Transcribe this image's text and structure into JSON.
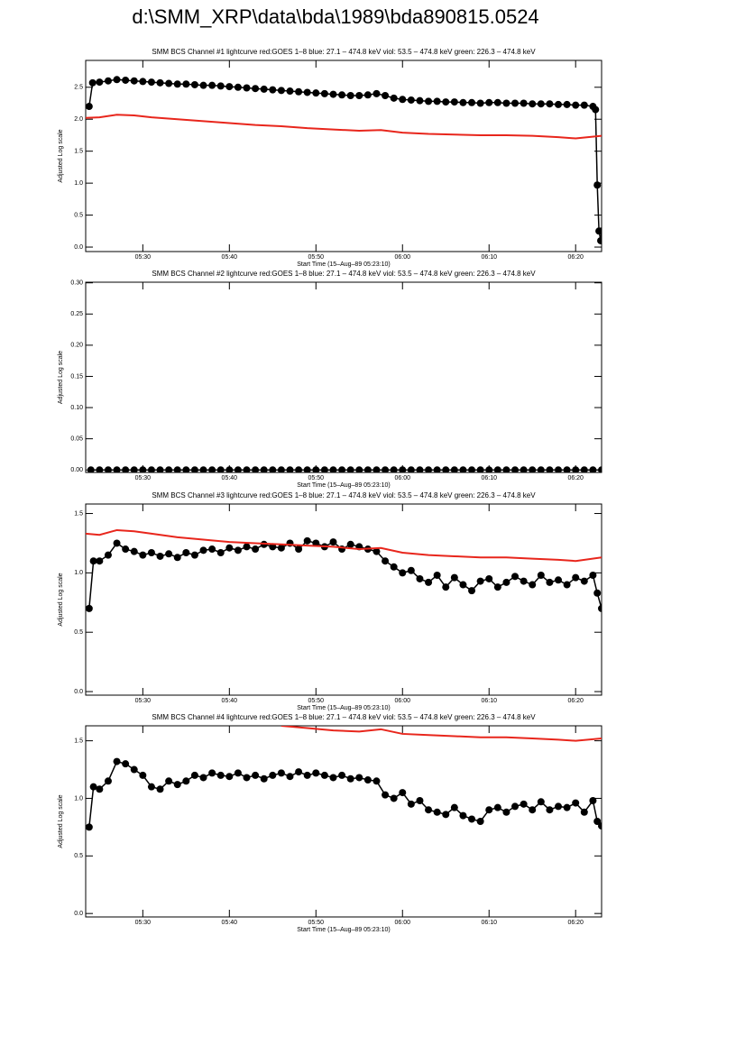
{
  "title": "d:\\SMM_XRP\\data\\bda\\1989\\bda890815.0524",
  "chart_data": [
    {
      "type": "line",
      "title": "SMM BCS Channel #1 lightcurve  red:GOES 1–8  blue: 27.1 – 474.8 keV  viol: 53.5 – 474.8 keV  green: 226.3 – 474.8 keV",
      "x_label": "Start Time (15–Aug–89 05:23:10)",
      "y_label": "Adjusted Log scale",
      "xlim": [
        323.4,
        383.0
      ],
      "ylim": [
        -0.07,
        2.92
      ],
      "xticks": [
        {
          "value": 330,
          "label": "05:30"
        },
        {
          "value": 340,
          "label": "05:40"
        },
        {
          "value": 350,
          "label": "05:50"
        },
        {
          "value": 360,
          "label": "06:00"
        },
        {
          "value": 370,
          "label": "06:10"
        },
        {
          "value": 380,
          "label": "06:20"
        }
      ],
      "yticks": [
        {
          "value": 0,
          "label": "0.0"
        },
        0.5,
        {
          "value": 1,
          "label": "1.0"
        },
        1.5,
        {
          "value": 2,
          "label": "2.0"
        },
        2.5
      ],
      "series": [
        {
          "color": "#000000",
          "markers": true,
          "x": [
            323.8,
            324.2,
            325,
            326,
            327,
            328,
            329,
            330,
            331,
            332,
            333,
            334,
            335,
            336,
            337,
            338,
            339,
            340,
            341,
            342,
            343,
            344,
            345,
            346,
            347,
            348,
            349,
            350,
            351,
            352,
            353,
            354,
            355,
            356,
            357,
            358,
            359,
            360,
            361,
            362,
            363,
            364,
            365,
            366,
            367,
            368,
            369,
            370,
            371,
            372,
            373,
            374,
            375,
            376,
            377,
            378,
            379,
            380,
            381,
            382,
            382.3,
            382.5,
            382.7,
            382.9,
            383.0
          ],
          "values": [
            2.2,
            2.57,
            2.58,
            2.6,
            2.62,
            2.61,
            2.6,
            2.59,
            2.58,
            2.57,
            2.56,
            2.55,
            2.55,
            2.54,
            2.53,
            2.53,
            2.52,
            2.51,
            2.5,
            2.49,
            2.48,
            2.47,
            2.46,
            2.45,
            2.44,
            2.43,
            2.42,
            2.41,
            2.4,
            2.39,
            2.38,
            2.37,
            2.37,
            2.38,
            2.4,
            2.37,
            2.33,
            2.31,
            2.3,
            2.29,
            2.28,
            2.28,
            2.27,
            2.27,
            2.26,
            2.26,
            2.25,
            2.26,
            2.26,
            2.25,
            2.25,
            2.25,
            2.24,
            2.24,
            2.24,
            2.23,
            2.23,
            2.22,
            2.22,
            2.2,
            2.15,
            0.97,
            0.25,
            0.1,
            0.25
          ]
        },
        {
          "color": "#e8261c",
          "markers": false,
          "x": [
            323.4,
            325,
            327,
            329,
            331,
            334,
            337,
            340,
            343,
            346,
            349,
            352,
            355,
            357.5,
            360,
            363,
            366,
            369,
            372,
            375,
            378,
            380,
            383
          ],
          "values": [
            2.02,
            2.03,
            2.07,
            2.06,
            2.03,
            2.0,
            1.97,
            1.94,
            1.91,
            1.89,
            1.86,
            1.84,
            1.82,
            1.83,
            1.79,
            1.77,
            1.76,
            1.75,
            1.75,
            1.74,
            1.72,
            1.7,
            1.74
          ]
        }
      ]
    },
    {
      "type": "line",
      "title": "SMM BCS Channel #2 lightcurve  red:GOES 1–8  blue: 27.1 – 474.8 keV  viol: 53.5 – 474.8 keV  green: 226.3 – 474.8 keV",
      "x_label": "Start Time (15–Aug–89 05:23:10)",
      "y_label": "Adjusted Log scale",
      "xlim": [
        323.4,
        383.0
      ],
      "ylim": [
        -0.004,
        0.301
      ],
      "xticks": [
        {
          "value": 330,
          "label": "05:30"
        },
        {
          "value": 340,
          "label": "05:40"
        },
        {
          "value": 350,
          "label": "05:50"
        },
        {
          "value": 360,
          "label": "06:00"
        },
        {
          "value": 370,
          "label": "06:10"
        },
        {
          "value": 380,
          "label": "06:20"
        }
      ],
      "yticks": [
        {
          "value": 0,
          "label": "0.00"
        },
        0.05,
        {
          "value": 0.1,
          "label": "0.10"
        },
        0.15,
        {
          "value": 0.2,
          "label": "0.20"
        },
        0.25,
        {
          "value": 0.3,
          "label": "0.30"
        }
      ],
      "series": [
        {
          "color": "#000000",
          "markers": true,
          "x": [
            324,
            325,
            326,
            327,
            328,
            329,
            330,
            331,
            332,
            333,
            334,
            335,
            336,
            337,
            338,
            339,
            340,
            341,
            342,
            343,
            344,
            345,
            346,
            347,
            348,
            349,
            350,
            351,
            352,
            353,
            354,
            355,
            356,
            357,
            358,
            359,
            360,
            361,
            362,
            363,
            364,
            365,
            366,
            367,
            368,
            369,
            370,
            371,
            372,
            373,
            374,
            375,
            376,
            377,
            378,
            379,
            380,
            381,
            382,
            383
          ],
          "values": [
            0,
            0,
            0,
            0,
            0,
            0,
            0,
            0,
            0,
            0,
            0,
            0,
            0,
            0,
            0,
            0,
            0,
            0,
            0,
            0,
            0,
            0,
            0,
            0,
            0,
            0,
            0,
            0,
            0,
            0,
            0,
            0,
            0,
            0,
            0,
            0,
            0,
            0,
            0,
            0,
            0,
            0,
            0,
            0,
            0,
            0,
            0,
            0,
            0,
            0,
            0,
            0,
            0,
            0,
            0,
            0,
            0,
            0,
            0,
            0
          ]
        }
      ]
    },
    {
      "type": "line",
      "title": "SMM BCS Channel #3 lightcurve  red:GOES 1–8  blue: 27.1 – 474.8 keV  viol: 53.5 – 474.8 keV  green: 226.3 – 474.8 keV",
      "x_label": "Start Time (15–Aug–89 05:23:10)",
      "y_label": "Adjusted Log scale",
      "xlim": [
        323.4,
        383.0
      ],
      "ylim": [
        -0.03,
        1.58
      ],
      "xticks": [
        {
          "value": 330,
          "label": "05:30"
        },
        {
          "value": 340,
          "label": "05:40"
        },
        {
          "value": 350,
          "label": "05:50"
        },
        {
          "value": 360,
          "label": "06:00"
        },
        {
          "value": 370,
          "label": "06:10"
        },
        {
          "value": 380,
          "label": "06:20"
        }
      ],
      "yticks": [
        {
          "value": 0,
          "label": "0.0"
        },
        0.5,
        {
          "value": 1,
          "label": "1.0"
        },
        1.5
      ],
      "series": [
        {
          "color": "#000000",
          "markers": true,
          "x": [
            323.8,
            324.3,
            325,
            326,
            327,
            328,
            329,
            330,
            331,
            332,
            333,
            334,
            335,
            336,
            337,
            338,
            339,
            340,
            341,
            342,
            343,
            344,
            345,
            346,
            347,
            348,
            349,
            350,
            351,
            352,
            353,
            354,
            355,
            356,
            357,
            358,
            359,
            360,
            361,
            362,
            363,
            364,
            365,
            366,
            367,
            368,
            369,
            370,
            371,
            372,
            373,
            374,
            375,
            376,
            377,
            378,
            379,
            380,
            381,
            382,
            382.5,
            383
          ],
          "values": [
            0.7,
            1.1,
            1.1,
            1.15,
            1.25,
            1.2,
            1.18,
            1.15,
            1.17,
            1.14,
            1.16,
            1.13,
            1.17,
            1.15,
            1.19,
            1.2,
            1.17,
            1.21,
            1.19,
            1.22,
            1.2,
            1.24,
            1.22,
            1.21,
            1.25,
            1.2,
            1.27,
            1.25,
            1.22,
            1.26,
            1.2,
            1.24,
            1.22,
            1.2,
            1.18,
            1.1,
            1.05,
            1.0,
            1.02,
            0.95,
            0.92,
            0.98,
            0.88,
            0.96,
            0.9,
            0.85,
            0.93,
            0.95,
            0.88,
            0.92,
            0.97,
            0.93,
            0.9,
            0.98,
            0.92,
            0.94,
            0.9,
            0.96,
            0.93,
            0.98,
            0.83,
            0.7
          ]
        },
        {
          "color": "#e8261c",
          "markers": false,
          "x": [
            323.4,
            325,
            327,
            329,
            331,
            334,
            337,
            340,
            343,
            346,
            349,
            352,
            355,
            357.5,
            360,
            363,
            366,
            369,
            372,
            375,
            378,
            380,
            383
          ],
          "values": [
            1.33,
            1.32,
            1.36,
            1.35,
            1.33,
            1.3,
            1.28,
            1.26,
            1.25,
            1.24,
            1.23,
            1.22,
            1.2,
            1.21,
            1.17,
            1.15,
            1.14,
            1.13,
            1.13,
            1.12,
            1.11,
            1.1,
            1.13
          ]
        }
      ]
    },
    {
      "type": "line",
      "title": "SMM BCS Channel #4 lightcurve  red:GOES 1–8  blue: 27.1 – 474.8 keV  viol: 53.5 – 474.8 keV  green: 226.3 – 474.8 keV",
      "x_label": "Start Time (15–Aug–89 05:23:10)",
      "y_label": "Adjusted Log scale",
      "xlim": [
        323.4,
        383.0
      ],
      "ylim": [
        -0.03,
        1.63
      ],
      "xticks": [
        {
          "value": 330,
          "label": "05:30"
        },
        {
          "value": 340,
          "label": "05:40"
        },
        {
          "value": 350,
          "label": "05:50"
        },
        {
          "value": 360,
          "label": "06:00"
        },
        {
          "value": 370,
          "label": "06:10"
        },
        {
          "value": 380,
          "label": "06:20"
        }
      ],
      "yticks": [
        {
          "value": 0,
          "label": "0.0"
        },
        0.5,
        {
          "value": 1,
          "label": "1.0"
        },
        1.5
      ],
      "series": [
        {
          "color": "#000000",
          "markers": true,
          "x": [
            323.8,
            324.3,
            325,
            326,
            327,
            328,
            329,
            330,
            331,
            332,
            333,
            334,
            335,
            336,
            337,
            338,
            339,
            340,
            341,
            342,
            343,
            344,
            345,
            346,
            347,
            348,
            349,
            350,
            351,
            352,
            353,
            354,
            355,
            356,
            357,
            358,
            359,
            360,
            361,
            362,
            363,
            364,
            365,
            366,
            367,
            368,
            369,
            370,
            371,
            372,
            373,
            374,
            375,
            376,
            377,
            378,
            379,
            380,
            381,
            382,
            382.5,
            383
          ],
          "values": [
            0.75,
            1.1,
            1.08,
            1.15,
            1.32,
            1.3,
            1.25,
            1.2,
            1.1,
            1.08,
            1.15,
            1.12,
            1.15,
            1.2,
            1.18,
            1.22,
            1.2,
            1.19,
            1.22,
            1.18,
            1.2,
            1.17,
            1.2,
            1.22,
            1.19,
            1.23,
            1.2,
            1.22,
            1.2,
            1.18,
            1.2,
            1.17,
            1.18,
            1.16,
            1.15,
            1.03,
            1.0,
            1.05,
            0.95,
            0.98,
            0.9,
            0.88,
            0.86,
            0.92,
            0.85,
            0.82,
            0.8,
            0.9,
            0.92,
            0.88,
            0.93,
            0.95,
            0.9,
            0.97,
            0.9,
            0.93,
            0.92,
            0.96,
            0.88,
            0.98,
            0.8,
            0.76
          ]
        },
        {
          "color": "#e8261c",
          "markers": false,
          "x": [
            346,
            349,
            352,
            355,
            357.5,
            360,
            363,
            366,
            369,
            372,
            375,
            378,
            380,
            383
          ],
          "values": [
            1.63,
            1.61,
            1.59,
            1.58,
            1.6,
            1.56,
            1.55,
            1.54,
            1.53,
            1.53,
            1.52,
            1.51,
            1.5,
            1.52
          ]
        }
      ]
    }
  ]
}
